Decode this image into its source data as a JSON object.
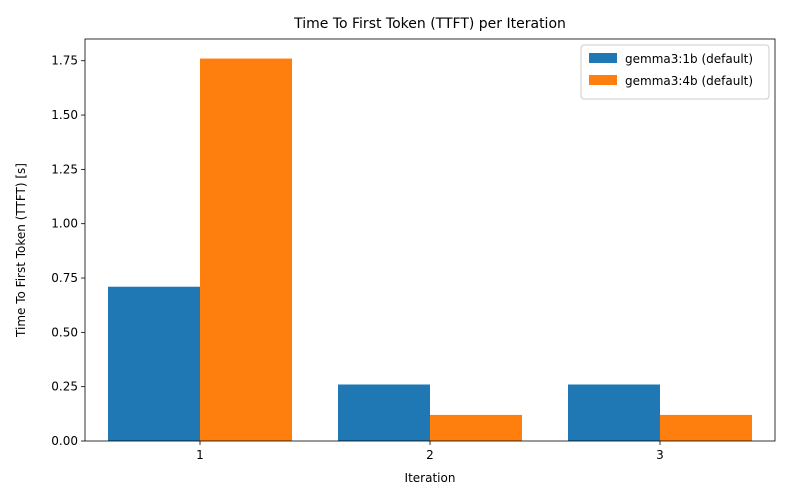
{
  "chart_data": {
    "type": "bar",
    "title": "Time To First Token (TTFT) per Iteration",
    "xlabel": "Iteration",
    "ylabel": "Time To First Token (TTFT) [s]",
    "categories": [
      "1",
      "2",
      "3"
    ],
    "series": [
      {
        "name": "gemma3:1b (default)",
        "color": "#1f77b4",
        "values": [
          0.71,
          0.26,
          0.26
        ]
      },
      {
        "name": "gemma3:4b (default)",
        "color": "#ff7f0e",
        "values": [
          1.76,
          0.12,
          0.12
        ]
      }
    ],
    "ylim": [
      0,
      1.85
    ],
    "yticks": [
      "0.00",
      "0.25",
      "0.50",
      "0.75",
      "1.00",
      "1.25",
      "1.50",
      "1.75"
    ],
    "grid": false,
    "legend_position": "top-right"
  }
}
